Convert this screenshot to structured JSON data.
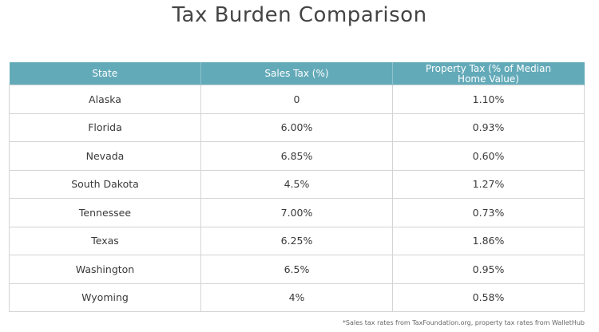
{
  "title": "Tax Burden Comparison",
  "table": {
    "headers": [
      "State",
      "Sales Tax (%)",
      "Property Tax (% of Median Home Value)"
    ],
    "rows": [
      {
        "state": "Alaska",
        "sales_tax": "0",
        "property_tax": "1.10%"
      },
      {
        "state": "Florida",
        "sales_tax": "6.00%",
        "property_tax": "0.93%"
      },
      {
        "state": "Nevada",
        "sales_tax": "6.85%",
        "property_tax": "0.60%"
      },
      {
        "state": "South Dakota",
        "sales_tax": "4.5%",
        "property_tax": "1.27%"
      },
      {
        "state": "Tennessee",
        "sales_tax": "7.00%",
        "property_tax": "0.73%"
      },
      {
        "state": "Texas",
        "sales_tax": "6.25%",
        "property_tax": "1.86%"
      },
      {
        "state": "Washington",
        "sales_tax": "6.5%",
        "property_tax": "0.95%"
      },
      {
        "state": "Wyoming",
        "sales_tax": "4%",
        "property_tax": "0.58%"
      }
    ]
  },
  "footnote": "*Sales tax rates from TaxFoundation.org, property tax rates from WalletHub",
  "colors": {
    "header_background": "#63aab9",
    "header_text": "#ffffff",
    "border": "#d4d4d4"
  }
}
